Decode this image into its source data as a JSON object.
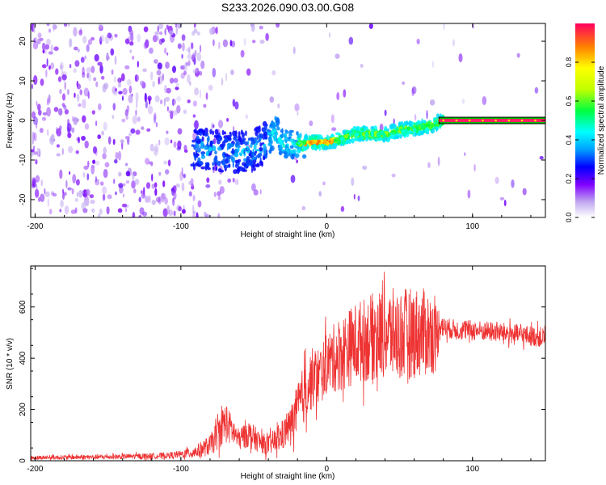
{
  "title": "S233.2026.090.03.00.G08",
  "chart_data": [
    {
      "type": "heatmap",
      "name": "spectrogram",
      "xlabel": "Height of straight line (km)",
      "ylabel": "Frequency (Hz)",
      "xlim": [
        -203,
        150
      ],
      "ylim": [
        -24.5,
        24.5
      ],
      "xticks": [
        -200,
        -100,
        0,
        100
      ],
      "yticks": [
        -20,
        -10,
        0,
        10,
        20
      ],
      "colorbar": {
        "label": "Normalized spectral amplitude",
        "range": [
          0,
          1
        ],
        "ticks": [
          "0.0",
          "0.2",
          "0.4",
          "0.6",
          "0.8"
        ],
        "tick_values": [
          0.0,
          0.2,
          0.4,
          0.6,
          0.8
        ]
      },
      "ridge": {
        "description": "Frequency of dominant spectral line vs height",
        "x": [
          -90,
          -80,
          -70,
          -60,
          -50,
          -40,
          -35,
          -30,
          -20,
          -10,
          0,
          10,
          20,
          30,
          40,
          50,
          60,
          70,
          77,
          80,
          100,
          120,
          150
        ],
        "y": [
          -7,
          -7.5,
          -8,
          -8,
          -7.5,
          -5,
          -2.5,
          -6,
          -6,
          -5.5,
          -5.5,
          -4.5,
          -3.5,
          -3.5,
          -3.5,
          -2.5,
          -2,
          -1.5,
          -0.5,
          0,
          0,
          0,
          0
        ]
      }
    },
    {
      "type": "line",
      "name": "snr",
      "xlabel": "Height of straight line (km)",
      "ylabel": "SNR (10 * v/v)",
      "xlim": [
        -203,
        150
      ],
      "ylim": [
        0,
        760
      ],
      "xticks": [
        -200,
        -100,
        0,
        100
      ],
      "yticks": [
        0,
        200,
        400,
        600
      ],
      "color": "#ee3333",
      "envelope": {
        "x": [
          -203,
          -150,
          -110,
          -100,
          -90,
          -80,
          -75,
          -70,
          -65,
          -60,
          -55,
          -50,
          -45,
          -40,
          -35,
          -30,
          -25,
          -20,
          -15,
          -10,
          -5,
          0,
          10,
          20,
          30,
          40,
          50,
          60,
          70,
          75,
          78,
          80,
          90,
          100,
          120,
          150
        ],
        "mean": [
          12,
          15,
          20,
          25,
          35,
          60,
          100,
          150,
          120,
          80,
          110,
          90,
          70,
          60,
          80,
          100,
          140,
          200,
          270,
          320,
          330,
          380,
          420,
          460,
          480,
          500,
          490,
          500,
          500,
          480,
          540,
          520,
          510,
          510,
          500,
          480
        ],
        "amp": [
          8,
          10,
          12,
          15,
          25,
          40,
          60,
          80,
          60,
          40,
          60,
          50,
          40,
          40,
          50,
          60,
          70,
          100,
          120,
          120,
          120,
          120,
          150,
          160,
          170,
          180,
          180,
          180,
          170,
          140,
          60,
          40,
          40,
          40,
          40,
          40
        ]
      }
    }
  ]
}
